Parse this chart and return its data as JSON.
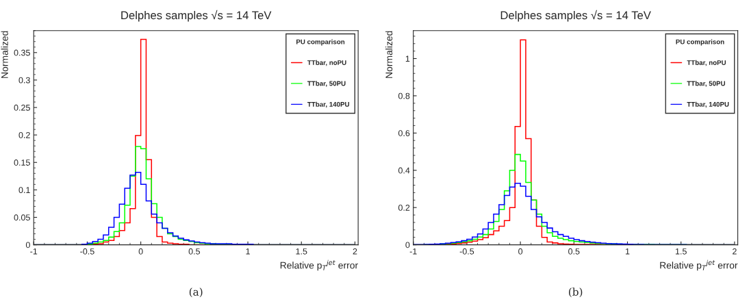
{
  "chart_data": [
    {
      "type": "histogram",
      "title": "Delphes samples √s = 14 TeV",
      "xlabel": "Relative p$_{T}$$^{jet}$ error",
      "ylabel": "Normalized",
      "legend_title": "PU comparison",
      "legend": "top right",
      "annotations": [
        "(a)"
      ],
      "bins": [
        -1,
        -0.95,
        -0.9,
        -0.85,
        -0.8,
        -0.75,
        -0.7,
        -0.65,
        -0.6,
        -0.55,
        -0.5,
        -0.45,
        -0.4,
        -0.35,
        -0.3,
        -0.25,
        -0.2,
        -0.15,
        -0.1,
        -0.05,
        0,
        0.05,
        0.1,
        0.15,
        0.2,
        0.25,
        0.3,
        0.35,
        0.4,
        0.45,
        0.5,
        0.55,
        0.6,
        0.65,
        0.7,
        0.75,
        0.8,
        0.85,
        0.9,
        0.95,
        1,
        1.05,
        1.1,
        1.15,
        1.2,
        1.25,
        1.3,
        1.35,
        1.4,
        1.45,
        1.5,
        1.55,
        1.6,
        1.65,
        1.7,
        1.75,
        1.8,
        1.85,
        1.9,
        1.95,
        2
      ],
      "xlim": [
        -1,
        2.03
      ],
      "xticks": [
        -1,
        -0.5,
        0,
        0.5,
        1,
        1.5,
        2
      ],
      "ylim": [
        0,
        0.39
      ],
      "yticks": [
        0,
        0.05,
        0.1,
        0.15,
        0.2,
        0.25,
        0.3,
        0.35
      ],
      "series": [
        {
          "name": "TTbar, noPU",
          "color": "#ff0000",
          "values": [
            0,
            0,
            0,
            0,
            0,
            0,
            0,
            0,
            0,
            0,
            0,
            0.001,
            0.002,
            0.005,
            0.008,
            0.015,
            0.026,
            0.04,
            0.066,
            0.199,
            0.374,
            0.155,
            0.05,
            0.015,
            0.005,
            0.003,
            0.002,
            0.001,
            0.001,
            0,
            0,
            0,
            0,
            0,
            0,
            0,
            0,
            0,
            0,
            0,
            0,
            0,
            0,
            0,
            0,
            0,
            0,
            0,
            0,
            0,
            0,
            0,
            0,
            0,
            0,
            0,
            0,
            0,
            0,
            0
          ]
        },
        {
          "name": "TTbar, 50PU",
          "color": "#00ff00",
          "values": [
            0,
            0,
            0,
            0,
            0,
            0,
            0,
            0,
            0,
            0,
            0.001,
            0.003,
            0.005,
            0.008,
            0.014,
            0.024,
            0.04,
            0.072,
            0.125,
            0.179,
            0.175,
            0.12,
            0.075,
            0.05,
            0.03,
            0.02,
            0.015,
            0.01,
            0.008,
            0.006,
            0.004,
            0.003,
            0.002,
            0.002,
            0.001,
            0.001,
            0.001,
            0.001,
            0,
            0,
            0,
            0,
            0,
            0,
            0,
            0,
            0,
            0,
            0,
            0,
            0,
            0,
            0,
            0,
            0,
            0,
            0,
            0,
            0,
            0
          ]
        },
        {
          "name": "TTbar, 140PU",
          "color": "#0000ff",
          "values": [
            0,
            0,
            0,
            0,
            0,
            0,
            0,
            0,
            0,
            0.001,
            0.003,
            0.006,
            0.01,
            0.018,
            0.032,
            0.05,
            0.074,
            0.103,
            0.127,
            0.132,
            0.11,
            0.08,
            0.056,
            0.04,
            0.03,
            0.022,
            0.016,
            0.012,
            0.009,
            0.007,
            0.005,
            0.004,
            0.003,
            0.002,
            0.002,
            0.002,
            0.002,
            0.001,
            0.001,
            0.001,
            0.001,
            0,
            0,
            0,
            0,
            0,
            0,
            0,
            0,
            0,
            0,
            0,
            0,
            0,
            0,
            0,
            0,
            0,
            0,
            0
          ]
        }
      ]
    },
    {
      "type": "histogram",
      "title": "Delphes samples √s = 14 TeV",
      "xlabel": "Relative p$_{T}$$^{jet}$ error",
      "ylabel": "Normalized",
      "legend_title": "PU comparison",
      "legend": "top right",
      "annotations": [
        "(b)"
      ],
      "bins": [
        -1,
        -0.95,
        -0.9,
        -0.85,
        -0.8,
        -0.75,
        -0.7,
        -0.65,
        -0.6,
        -0.55,
        -0.5,
        -0.45,
        -0.4,
        -0.35,
        -0.3,
        -0.25,
        -0.2,
        -0.15,
        -0.1,
        -0.05,
        0,
        0.05,
        0.1,
        0.15,
        0.2,
        0.25,
        0.3,
        0.35,
        0.4,
        0.45,
        0.5,
        0.55,
        0.6,
        0.65,
        0.7,
        0.75,
        0.8,
        0.85,
        0.9,
        0.95,
        1,
        1.05,
        1.1,
        1.15,
        1.2,
        1.25,
        1.3,
        1.35,
        1.4,
        1.45,
        1.5,
        1.55,
        1.6,
        1.65,
        1.7,
        1.75,
        1.8,
        1.85,
        1.9,
        1.95,
        2
      ],
      "xlim": [
        -1,
        2.03
      ],
      "xticks": [
        -1,
        -0.5,
        0,
        0.5,
        1,
        1.5,
        2
      ],
      "ylim": [
        0,
        1.15
      ],
      "yticks": [
        0,
        0.2,
        0.4,
        0.6,
        0.8,
        1
      ],
      "series": [
        {
          "name": "TTbar, noPU",
          "color": "#ff0000",
          "values": [
            0,
            0,
            0,
            0,
            0.001,
            0.002,
            0.003,
            0.005,
            0.007,
            0.01,
            0.014,
            0.02,
            0.028,
            0.038,
            0.055,
            0.075,
            0.1,
            0.13,
            0.2,
            0.635,
            1.1,
            0.57,
            0.24,
            0.1,
            0.04,
            0.015,
            0.01,
            0.006,
            0.004,
            0.003,
            0.002,
            0.002,
            0.002,
            0.002,
            0.002,
            0.001,
            0.001,
            0.001,
            0.001,
            0.001,
            0.001,
            0,
            0,
            0,
            0,
            0,
            0,
            0,
            0,
            0,
            0,
            0,
            0,
            0,
            0,
            0,
            0,
            0,
            0,
            0
          ]
        },
        {
          "name": "TTbar, 50PU",
          "color": "#00ff00",
          "values": [
            0,
            0,
            0.001,
            0.002,
            0.003,
            0.005,
            0.007,
            0.009,
            0.012,
            0.016,
            0.022,
            0.03,
            0.042,
            0.055,
            0.085,
            0.125,
            0.19,
            0.29,
            0.4,
            0.485,
            0.45,
            0.335,
            0.24,
            0.165,
            0.1,
            0.065,
            0.045,
            0.035,
            0.028,
            0.022,
            0.018,
            0.015,
            0.012,
            0.01,
            0.008,
            0.007,
            0.006,
            0.005,
            0.004,
            0.003,
            0.002,
            0.002,
            0.002,
            0.002,
            0.002,
            0.001,
            0.001,
            0.001,
            0.001,
            0.001,
            0.001,
            0,
            0,
            0,
            0,
            0,
            0,
            0,
            0,
            0
          ]
        },
        {
          "name": "TTbar, 140PU",
          "color": "#0000ff",
          "values": [
            0.001,
            0.001,
            0.002,
            0.003,
            0.004,
            0.006,
            0.009,
            0.012,
            0.016,
            0.022,
            0.03,
            0.042,
            0.058,
            0.085,
            0.12,
            0.165,
            0.215,
            0.265,
            0.31,
            0.33,
            0.315,
            0.26,
            0.19,
            0.15,
            0.12,
            0.09,
            0.07,
            0.055,
            0.045,
            0.035,
            0.028,
            0.022,
            0.018,
            0.014,
            0.011,
            0.009,
            0.007,
            0.006,
            0.005,
            0.004,
            0.003,
            0.002,
            0.002,
            0.001,
            0.001,
            0.001,
            0.001,
            0.001,
            0.001,
            0.001,
            0.001,
            0,
            0,
            0,
            0,
            0,
            0,
            0,
            0,
            0
          ]
        }
      ]
    }
  ]
}
